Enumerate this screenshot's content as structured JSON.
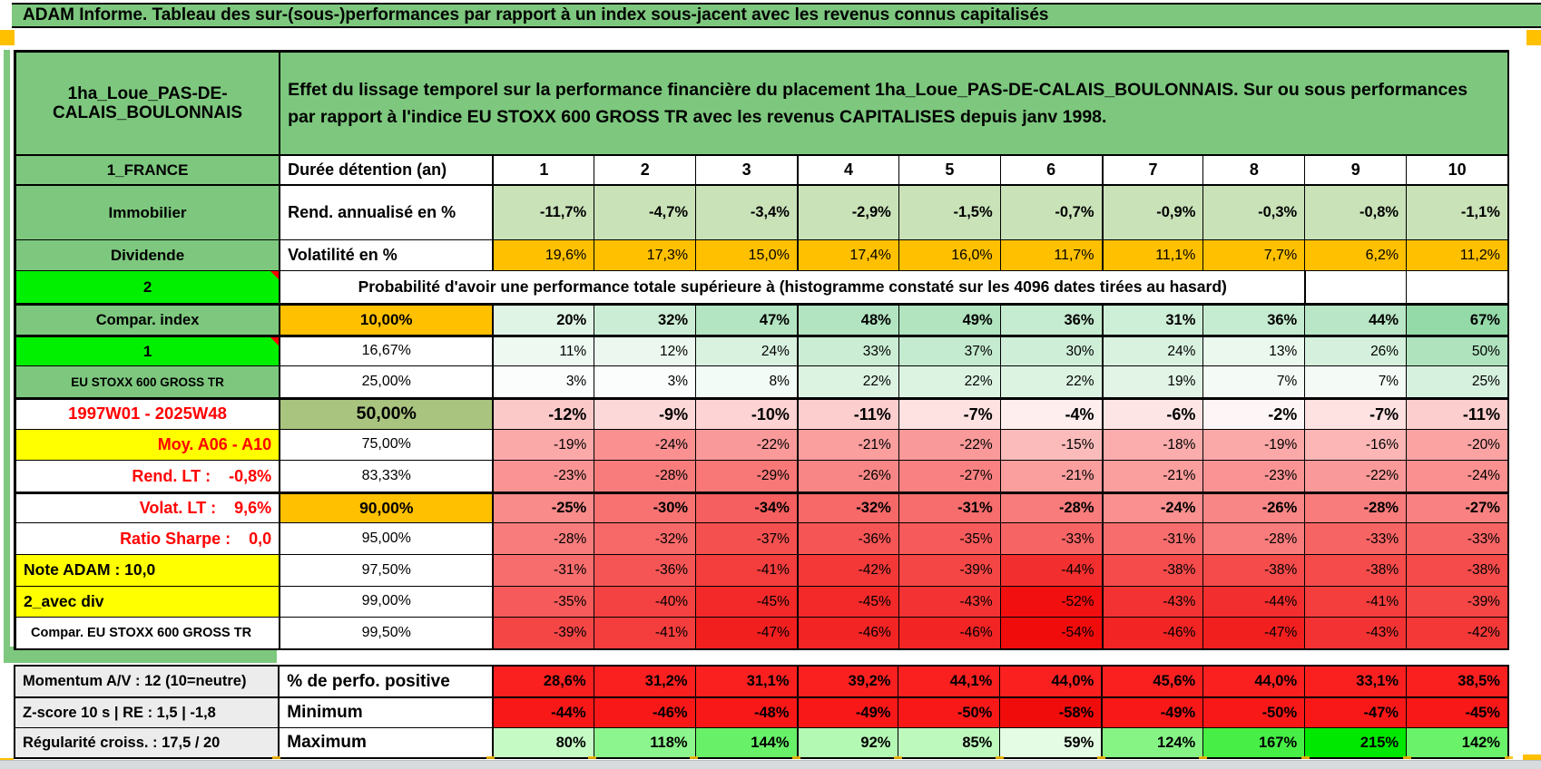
{
  "title": "ADAM Informe. Tableau des sur-(sous-)performances par rapport à un index sous-jacent avec les revenus connus capitalisés",
  "header": {
    "asset": "1ha_Loue_PAS-DE-\nCALAIS_BOULONNAIS",
    "description": "Effet du lissage temporel sur la performance financière du placement 1ha_Loue_PAS-DE-CALAIS_BOULONNAIS. Sur ou sous performances par rapport à l'indice EU STOXX 600 GROSS TR avec les revenus CAPITALISES depuis janv 1998."
  },
  "colors": {
    "header_green": "#7dc87e",
    "bright_green": "#00f000",
    "orange": "#ffc000",
    "yellow": "#ffff00",
    "olive": "#a9c47e",
    "label_gray": "#ececec",
    "red_text": "#ff0000",
    "strong_red": "#fa1c1c"
  },
  "main_rows": [
    {
      "id": "duree",
      "label": "1_FRANCE",
      "label_bg": "#7dc87e",
      "label_color": "#000",
      "col2": "Durée détention (an)",
      "col2_bg": "#ffffff",
      "values": [
        "1",
        "2",
        "3",
        "4",
        "5",
        "6",
        "7",
        "8",
        "9",
        "10"
      ],
      "bgs": [
        "#ffffff",
        "#ffffff",
        "#ffffff",
        "#ffffff",
        "#ffffff",
        "#ffffff",
        "#ffffff",
        "#ffffff",
        "#ffffff",
        "#ffffff"
      ]
    },
    {
      "id": "rend",
      "label": "Immobilier",
      "label_bg": "#7dc87e",
      "label_color": "#000",
      "col2": "Rend. annualisé en %",
      "col2_bg": "#ffffff",
      "values": [
        "-11,7%",
        "-4,7%",
        "-3,4%",
        "-2,9%",
        "-1,5%",
        "-0,7%",
        "-0,9%",
        "-0,3%",
        "-0,8%",
        "-1,1%"
      ],
      "bgs": [
        "#c9e2b8",
        "#c9e2b8",
        "#c9e2b8",
        "#c9e2b8",
        "#c9e2b8",
        "#c9e2b8",
        "#c9e2b8",
        "#c9e2b8",
        "#c9e2b8",
        "#c9e2b8"
      ]
    },
    {
      "id": "vol",
      "label": "Dividende",
      "label_bg": "#7dc87e",
      "label_color": "#000",
      "col2": "Volatilité en %",
      "col2_bg": "#ffffff",
      "values": [
        "19,6%",
        "17,3%",
        "15,0%",
        "17,4%",
        "16,0%",
        "11,7%",
        "11,1%",
        "7,7%",
        "6,2%",
        "11,2%"
      ],
      "bgs": [
        "#ffc000",
        "#ffc000",
        "#ffc000",
        "#ffc000",
        "#ffc000",
        "#ffc000",
        "#ffc000",
        "#ffc000",
        "#ffc000",
        "#ffc000"
      ]
    },
    {
      "id": "proba",
      "label": "2",
      "label_bg": "#00f000",
      "label_color": "#000",
      "note": true,
      "merged": "Probabilité d'avoir une performance totale supérieure à (histogramme constaté sur les 4096 dates tirées au hasard)",
      "merged_span": 9,
      "tail_bgs": [
        "#ffffff",
        "#ffffff"
      ]
    },
    {
      "id": "p10",
      "label": "Compar. index",
      "label_bg": "#7dc87e",
      "label_color": "#000",
      "col2": "10,00%",
      "col2_bg": "#ffc000",
      "values": [
        "20%",
        "32%",
        "47%",
        "48%",
        "49%",
        "36%",
        "31%",
        "36%",
        "44%",
        "67%"
      ],
      "bgs": [
        "#dff4e5",
        "#ccedd5",
        "#b4e5c2",
        "#b2e4c1",
        "#b1e4bf",
        "#c5ebd0",
        "#cdeed7",
        "#c5ebd0",
        "#b9e6c6",
        "#94daa8"
      ]
    },
    {
      "id": "p1667",
      "label": "1",
      "label_bg": "#00f000",
      "label_color": "#000",
      "note": true,
      "col2": "16,67%",
      "col2_bg": "#ffffff",
      "values": [
        "11%",
        "12%",
        "24%",
        "33%",
        "37%",
        "30%",
        "24%",
        "13%",
        "26%",
        "50%"
      ],
      "bgs": [
        "#edf9f1",
        "#ecf8ef",
        "#d9f2e0",
        "#caedd4",
        "#c4eacf",
        "#cfeed8",
        "#d9f2e0",
        "#eaf8ee",
        "#d5f1dd",
        "#afe3be"
      ]
    },
    {
      "id": "p25",
      "label": "EU STOXX 600 GROSS TR",
      "label_bg": "#7dc87e",
      "label_color": "#000",
      "col2": "25,00%",
      "col2_bg": "#ffffff",
      "values": [
        "3%",
        "3%",
        "8%",
        "22%",
        "22%",
        "22%",
        "19%",
        "7%",
        "7%",
        "25%"
      ],
      "bgs": [
        "#fafdfb",
        "#fafdfb",
        "#f2fbf5",
        "#dcf3e2",
        "#dcf3e2",
        "#dcf3e2",
        "#e1f4e6",
        "#f4fbf6",
        "#f4fbf6",
        "#d7f1df"
      ]
    },
    {
      "id": "p50",
      "label": "1997W01 - 2025W48",
      "label_bg": "#ffffff",
      "label_color": "#ff0000",
      "col2": "50,00%",
      "col2_bg": "#a9c47e",
      "values": [
        "-12%",
        "-9%",
        "-10%",
        "-11%",
        "-7%",
        "-4%",
        "-6%",
        "-2%",
        "-7%",
        "-11%"
      ],
      "bgs": [
        "#fcc9c9",
        "#fdd8d8",
        "#fdd3d3",
        "#fdcece",
        "#fee1e1",
        "#feeeee",
        "#fee5e5",
        "#fef6f6",
        "#fee1e1",
        "#fdcece"
      ]
    },
    {
      "id": "p75",
      "label": "Moy. A06 - A10",
      "label_bg": "#ffff00",
      "label_color": "#ff0000",
      "col2": "75,00%",
      "col2_bg": "#ffffff",
      "values": [
        "-19%",
        "-24%",
        "-22%",
        "-21%",
        "-22%",
        "-15%",
        "-18%",
        "-19%",
        "-16%",
        "-20%"
      ],
      "bgs": [
        "#fba8a8",
        "#fa9090",
        "#fa9999",
        "#fa9e9e",
        "#fa9999",
        "#fcbbbb",
        "#fbadad",
        "#fba8a8",
        "#fcb6b6",
        "#fba3a3"
      ]
    },
    {
      "id": "p8333",
      "label": "Rend. LT :    -0,8%",
      "label_bg": "#ffffff",
      "label_color": "#ff0000",
      "col2": "83,33%",
      "col2_bg": "#ffffff",
      "values": [
        "-23%",
        "-28%",
        "-29%",
        "-26%",
        "-27%",
        "-21%",
        "-21%",
        "-23%",
        "-22%",
        "-24%"
      ],
      "bgs": [
        "#fa9494",
        "#f87c7c",
        "#f87777",
        "#f98686",
        "#f98181",
        "#fa9e9e",
        "#fa9e9e",
        "#fa9494",
        "#fa9999",
        "#fa9090"
      ]
    },
    {
      "id": "p90",
      "label": "Volat. LT :    9,6%",
      "label_bg": "#ffffff",
      "label_color": "#ff0000",
      "col2": "90,00%",
      "col2_bg": "#ffc000",
      "values": [
        "-25%",
        "-30%",
        "-34%",
        "-32%",
        "-31%",
        "-28%",
        "-24%",
        "-26%",
        "-28%",
        "-27%"
      ],
      "bgs": [
        "#f98b8b",
        "#f87272",
        "#f65f5f",
        "#f76868",
        "#f76d6d",
        "#f87c7c",
        "#fa9090",
        "#f98686",
        "#f87c7c",
        "#f98181"
      ]
    },
    {
      "id": "p95",
      "label": "Ratio Sharpe :    0,0",
      "label_bg": "#ffffff",
      "label_color": "#ff0000",
      "col2": "95,00%",
      "col2_bg": "#ffffff",
      "values": [
        "-28%",
        "-32%",
        "-37%",
        "-36%",
        "-35%",
        "-33%",
        "-31%",
        "-28%",
        "-33%",
        "-33%"
      ],
      "bgs": [
        "#f87c7c",
        "#f76868",
        "#f55050",
        "#f65555",
        "#f65a5a",
        "#f76464",
        "#f76d6d",
        "#f87c7c",
        "#f76464",
        "#f76464"
      ]
    },
    {
      "id": "p975",
      "label": "Note ADAM : 10,0",
      "label_bg": "#ffff00",
      "label_color": "#000",
      "col2": "97,50%",
      "col2_bg": "#ffffff",
      "values": [
        "-31%",
        "-36%",
        "-41%",
        "-42%",
        "-39%",
        "-44%",
        "-38%",
        "-38%",
        "-38%",
        "-38%"
      ],
      "bgs": [
        "#f76d6d",
        "#f65555",
        "#f43d3d",
        "#f43838",
        "#f54646",
        "#f32e2e",
        "#f54b4b",
        "#f54b4b",
        "#f54b4b",
        "#f54b4b"
      ]
    },
    {
      "id": "p99",
      "label": "2_avec div",
      "label_bg": "#ffff00",
      "label_color": "#000",
      "col2": "99,00%",
      "col2_bg": "#ffffff",
      "values": [
        "-35%",
        "-40%",
        "-45%",
        "-45%",
        "-43%",
        "-52%",
        "-43%",
        "-44%",
        "-41%",
        "-39%"
      ],
      "bgs": [
        "#f65a5a",
        "#f44141",
        "#f32929",
        "#f32929",
        "#f33333",
        "#f20f0f",
        "#f33333",
        "#f32e2e",
        "#f43d3d",
        "#f54646"
      ]
    },
    {
      "id": "p995",
      "label": "Compar. EU STOXX 600 GROSS TR",
      "label_bg": "#ffffff",
      "label_color": "#000",
      "col2": "99,50%",
      "col2_bg": "#ffffff",
      "values": [
        "-39%",
        "-41%",
        "-47%",
        "-46%",
        "-46%",
        "-54%",
        "-46%",
        "-47%",
        "-43%",
        "-42%"
      ],
      "bgs": [
        "#f54646",
        "#f43d3d",
        "#f21f1f",
        "#f22424",
        "#f22424",
        "#f10c0c",
        "#f22424",
        "#f21f1f",
        "#f33333",
        "#f43838"
      ]
    }
  ],
  "bottom_rows": [
    {
      "id": "perf",
      "label": "Momentum A/V : 12 (10=neutre)",
      "label_bg": "#ececec",
      "label_color": "#000",
      "col2": "% de perfo. positive",
      "col2_bg": "#ffffff",
      "values": [
        "28,6%",
        "31,2%",
        "31,1%",
        "39,2%",
        "44,1%",
        "44,0%",
        "45,6%",
        "44,0%",
        "33,1%",
        "38,5%"
      ],
      "bgs": [
        "#fa2020",
        "#fa2020",
        "#fa2020",
        "#fa2020",
        "#fa2020",
        "#fa2020",
        "#fa2020",
        "#fa2020",
        "#fa2020",
        "#fa2020"
      ]
    },
    {
      "id": "min",
      "label": "Z-score 10 s | RE : 1,5 | -1,8",
      "label_bg": "#ececec",
      "label_color": "#000",
      "col2": "Minimum",
      "col2_bg": "#ffffff",
      "values": [
        "-44%",
        "-46%",
        "-48%",
        "-49%",
        "-50%",
        "-58%",
        "-49%",
        "-50%",
        "-47%",
        "-45%"
      ],
      "bgs": [
        "#f91818",
        "#f91818",
        "#f91818",
        "#f91818",
        "#f91818",
        "#f10c0c",
        "#f91818",
        "#f91818",
        "#f91818",
        "#f91818"
      ]
    },
    {
      "id": "max",
      "label": "Régularité croiss. : 17,5 / 20",
      "label_bg": "#ececec",
      "label_color": "#000",
      "col2": "Maximum",
      "col2_bg": "#ffffff",
      "values": [
        "80%",
        "118%",
        "144%",
        "92%",
        "85%",
        "59%",
        "124%",
        "167%",
        "215%",
        "142%"
      ],
      "bgs": [
        "#c5fac5",
        "#8df58d",
        "#68f168",
        "#b3f8b3",
        "#bdf9bd",
        "#e3fce3",
        "#85f485",
        "#46ee46",
        "#00e800",
        "#6af26a"
      ]
    }
  ]
}
